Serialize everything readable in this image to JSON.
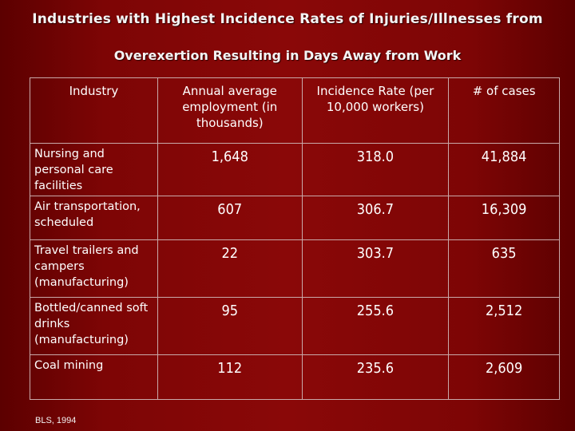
{
  "title": {
    "line1": "Industries with Highest Incidence Rates of Injuries/Illnesses from",
    "line2": "Overexertion Resulting in Days Away from Work"
  },
  "table": {
    "headers": [
      "Industry",
      "Annual average employment (in thousands)",
      "Incidence Rate (per 10,000 workers)",
      "# of cases"
    ],
    "rows": [
      {
        "industry": "Nursing and personal care facilities",
        "employment": "1,648",
        "rate": "318.0",
        "cases": "41,884"
      },
      {
        "industry": "Air transportation, scheduled",
        "employment": "607",
        "rate": "306.7",
        "cases": "16,309"
      },
      {
        "industry": "Travel trailers and campers (manufacturing)",
        "employment": "22",
        "rate": "303.7",
        "cases": "635"
      },
      {
        "industry": "Bottled/canned soft drinks (manufacturing)",
        "employment": "95",
        "rate": "255.6",
        "cases": "2,512"
      },
      {
        "industry": "Coal mining",
        "employment": "112",
        "rate": "235.6",
        "cases": "2,609"
      }
    ]
  },
  "source": "BLS, 1994",
  "colors": {
    "background": "#8a0808",
    "text": "#ffffff",
    "border": "#c9a9a9"
  }
}
